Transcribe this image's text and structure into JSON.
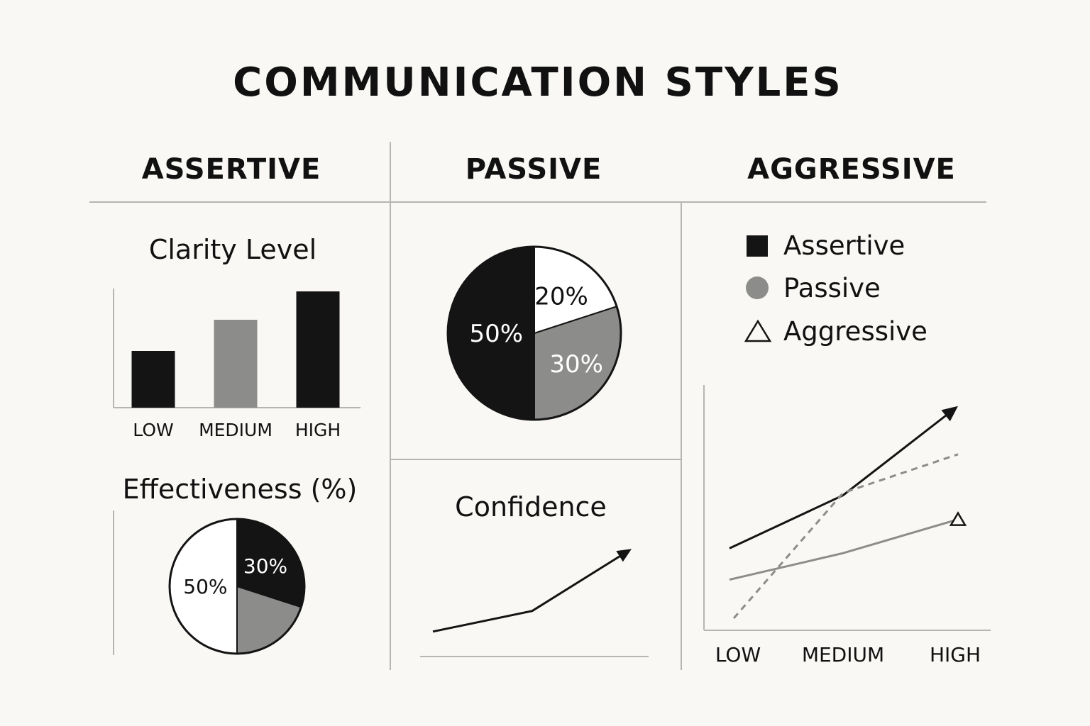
{
  "title": "COMMUNICATION STYLES",
  "columns": {
    "assertive": "ASSERTIVE",
    "passive": "PASSIVE",
    "aggressive": "AGGRESSIVE"
  },
  "colors": {
    "background": "#f9f8f5",
    "black": "#141414",
    "gray": "#8c8c8a",
    "white": "#ffffff",
    "rule": "#b5b5b2"
  },
  "chart_data": [
    {
      "id": "clarity",
      "type": "bar",
      "title": "Clarity Level",
      "categories": [
        "LOW",
        "MEDIUM",
        "HIGH"
      ],
      "values": [
        2,
        3.1,
        4.1
      ],
      "colors": [
        "#141414",
        "#8c8c8a",
        "#141414"
      ],
      "ylim": [
        0,
        5
      ],
      "xlabel": "",
      "ylabel": ""
    },
    {
      "id": "passive-pie",
      "type": "pie",
      "title": "",
      "slices": [
        {
          "label": "20%",
          "value": 20,
          "color": "#ffffff"
        },
        {
          "label": "30%",
          "value": 30,
          "color": "#8c8c8a"
        },
        {
          "label": "50%",
          "value": 50,
          "color": "#141414"
        }
      ]
    },
    {
      "id": "effectiveness",
      "type": "pie",
      "title": "Effectiveness (%)",
      "slices": [
        {
          "label": "30%",
          "value": 30,
          "color": "#141414"
        },
        {
          "label": "",
          "value": 20,
          "color": "#8c8c8a"
        },
        {
          "label": "50%",
          "value": 50,
          "color": "#ffffff"
        }
      ]
    },
    {
      "id": "confidence",
      "type": "line",
      "title": "Confidence",
      "x": [
        0,
        1,
        2
      ],
      "values": [
        1,
        2,
        5
      ],
      "ylim": [
        0,
        6
      ]
    },
    {
      "id": "aggressive-lines",
      "type": "line",
      "title": "",
      "categories": [
        "LOW",
        "MEDIUM",
        "HIGH"
      ],
      "legend": {
        "placement": "top",
        "entries": [
          "Assertive",
          "Passive",
          "Aggressive"
        ]
      },
      "ylim": [
        0,
        10
      ],
      "series": [
        {
          "name": "Assertive",
          "values": [
            3.4,
            5.6,
            9.3
          ],
          "style": "solid",
          "color": "#141414",
          "end_marker": "arrow"
        },
        {
          "name": "Passive",
          "values": [
            0.5,
            5.7,
            7.3
          ],
          "style": "dashed",
          "color": "#8c8c8a",
          "end_marker": "none"
        },
        {
          "name": "Aggressive",
          "values": [
            2.1,
            3.2,
            4.6
          ],
          "style": "solid",
          "color": "#8c8c8a",
          "end_marker": "triangle"
        }
      ]
    }
  ]
}
